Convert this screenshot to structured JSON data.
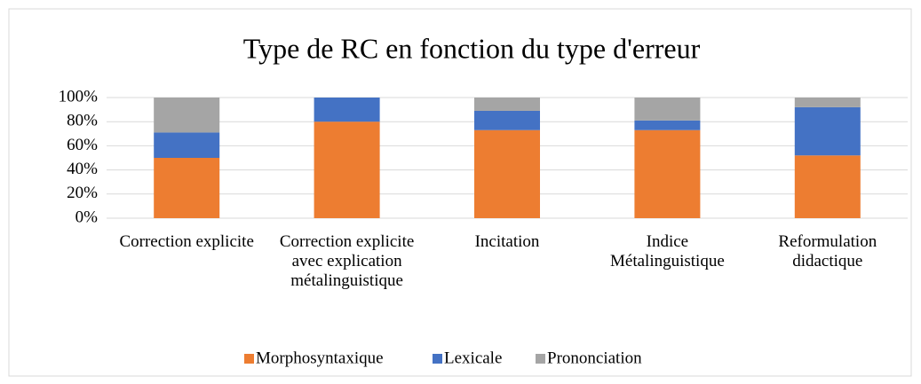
{
  "chart_data": {
    "type": "stacked_bar",
    "title": "Type de RC en fonction du type d'erreur",
    "categories": [
      "Correction explicite",
      "Correction explicite avec explication métalinguistique",
      "Incitation",
      "Indice Métalinguistique",
      "Reformulation didactique"
    ],
    "series": [
      {
        "name": "Morphosyntaxique",
        "color": "#ed7d31",
        "values": [
          50,
          80,
          73,
          73,
          52
        ]
      },
      {
        "name": "Lexicale",
        "color": "#4472c4",
        "values": [
          21,
          20,
          16,
          8,
          40
        ]
      },
      {
        "name": "Prononciation",
        "color": "#a5a5a5",
        "values": [
          29,
          0,
          11,
          19,
          8
        ]
      }
    ],
    "ylim": [
      0,
      100
    ],
    "yticks": [
      {
        "value": 0,
        "label": "0%"
      },
      {
        "value": 20,
        "label": "20%"
      },
      {
        "value": 40,
        "label": "40%"
      },
      {
        "value": 60,
        "label": "60%"
      },
      {
        "value": 80,
        "label": "80%"
      },
      {
        "value": 100,
        "label": "100%"
      }
    ],
    "grid": true,
    "legend": "bottom"
  }
}
